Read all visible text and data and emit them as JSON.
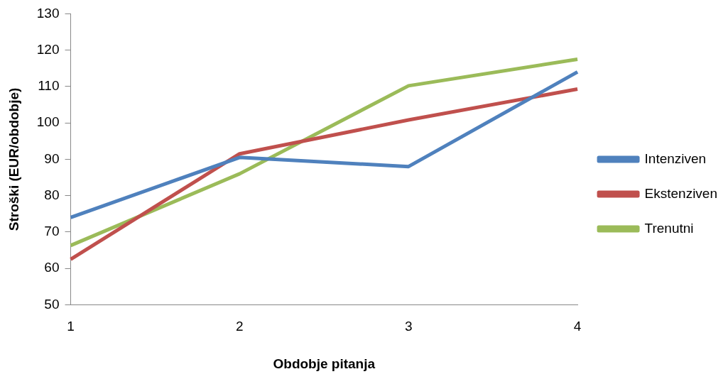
{
  "chart_data": {
    "type": "line",
    "xlabel": "Obdobje pitanja",
    "ylabel": "Stroški (EUR/obdobje)",
    "categories": [
      "1",
      "2",
      "3",
      "4"
    ],
    "series": [
      {
        "name": "Intenziven",
        "color": "#4f81bd",
        "values": [
          74,
          90.5,
          88,
          114
        ]
      },
      {
        "name": "Ekstenziven",
        "color": "#c0504d",
        "values": [
          62.5,
          91.5,
          100.8,
          109.3
        ]
      },
      {
        "name": "Trenutni",
        "color": "#9bbb59",
        "values": [
          66.3,
          86,
          110.2,
          117.5
        ]
      }
    ],
    "ylim": [
      50,
      130
    ],
    "yticks": [
      50,
      60,
      70,
      80,
      90,
      100,
      110,
      120,
      130
    ],
    "grid": false,
    "legend": "right",
    "marker": "none",
    "line_style": "solid"
  }
}
